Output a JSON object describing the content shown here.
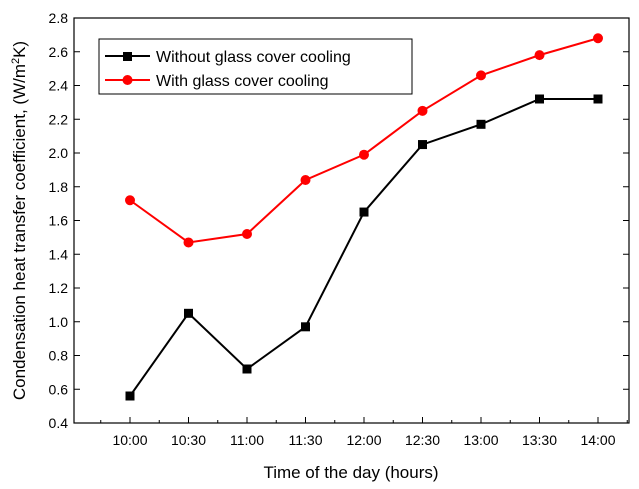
{
  "chart_data": {
    "type": "line",
    "xlabel": "Time of the day (hours)",
    "ylabel": {
      "prefix": "Condensation heat transfer coefficient, (W/m",
      "sup": "2",
      "suffix": "K)"
    },
    "categories": [
      "10:00",
      "10:30",
      "11:00",
      "11:30",
      "12:00",
      "12:30",
      "13:00",
      "13:30",
      "14:00"
    ],
    "ylim": [
      0.4,
      2.8
    ],
    "yticks": [
      "0.4",
      "0.6",
      "0.8",
      "1.0",
      "1.2",
      "1.4",
      "1.6",
      "1.8",
      "2.0",
      "2.2",
      "2.4",
      "2.6",
      "2.8"
    ],
    "grid": false,
    "legend_position": "top-left",
    "series": [
      {
        "name": "Without glass cover cooling",
        "color": "#000000",
        "marker": "square",
        "values": [
          0.56,
          1.05,
          0.72,
          0.97,
          1.65,
          2.05,
          2.17,
          2.32,
          2.32
        ]
      },
      {
        "name": "With glass cover cooling",
        "color": "#ff0000",
        "marker": "circle",
        "values": [
          1.72,
          1.47,
          1.52,
          1.84,
          1.99,
          2.25,
          2.46,
          2.58,
          2.68
        ]
      }
    ]
  }
}
